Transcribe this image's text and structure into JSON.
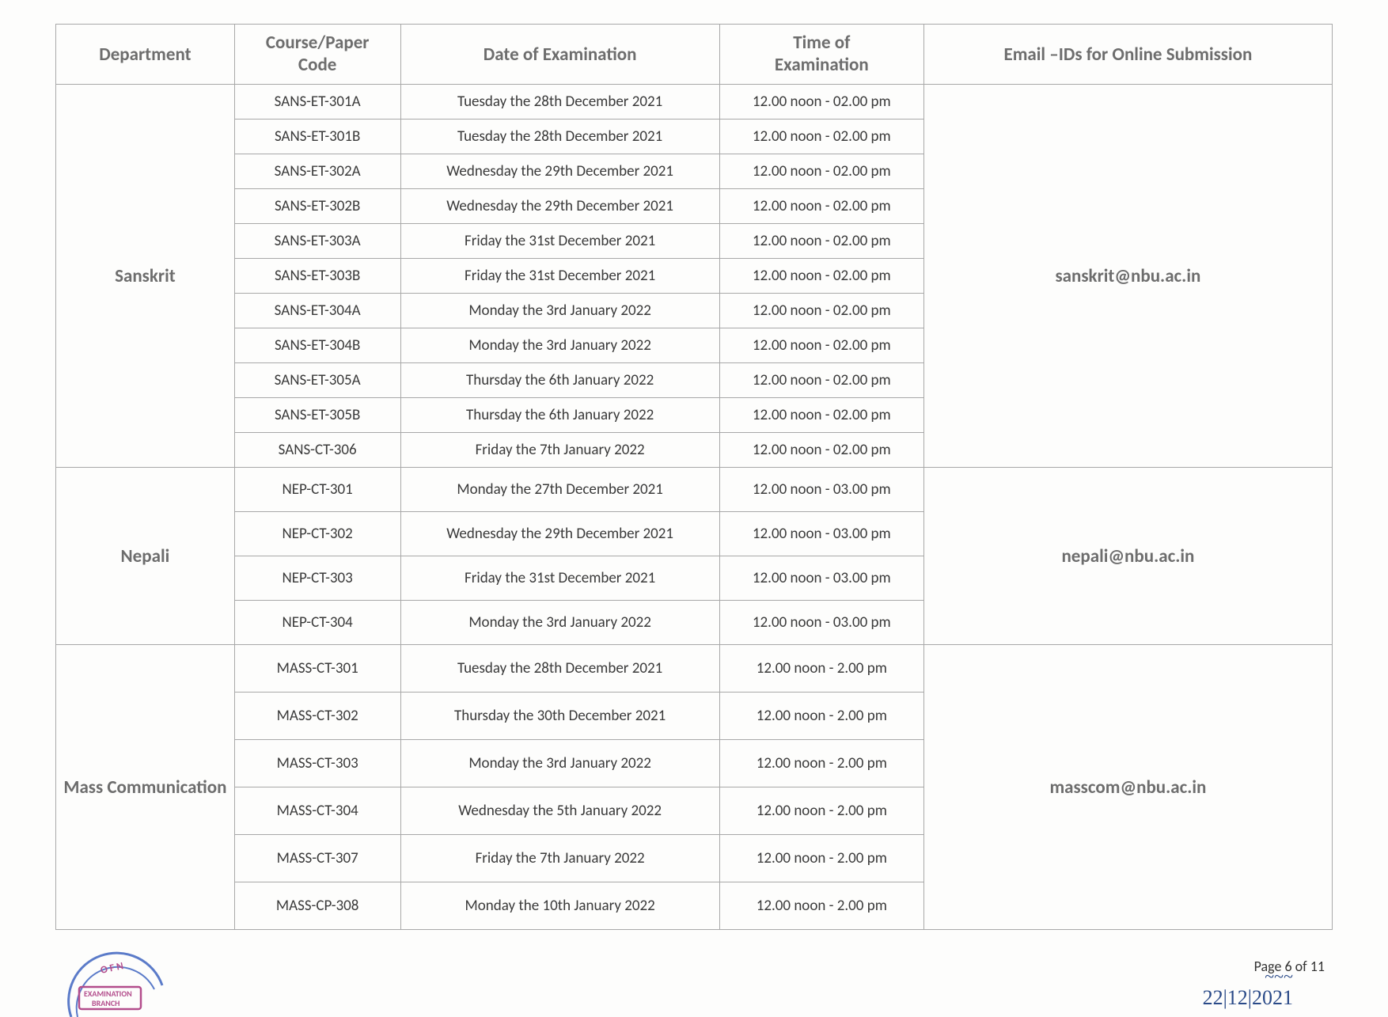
{
  "headers": {
    "dept": "Department",
    "code1": "Course/Paper",
    "code2": "Code",
    "date": "Date of Examination",
    "time1": "Time of",
    "time2": "Examination",
    "email": "Email –IDs for Online Submission"
  },
  "groups": [
    {
      "dept": "Sanskrit",
      "email": "sanskrit@nbu.ac.in",
      "rows": [
        {
          "code": "SANS-ET-301A",
          "date": "Tuesday the 28th December 2021",
          "time": "12.00 noon - 02.00 pm"
        },
        {
          "code": "SANS-ET-301B",
          "date": "Tuesday the 28th December 2021",
          "time": "12.00 noon - 02.00 pm"
        },
        {
          "code": "SANS-ET-302A",
          "date": "Wednesday the 29th December 2021",
          "time": "12.00 noon - 02.00 pm"
        },
        {
          "code": "SANS-ET-302B",
          "date": "Wednesday the 29th December 2021",
          "time": "12.00 noon - 02.00 pm"
        },
        {
          "code": "SANS-ET-303A",
          "date": "Friday the 31st December 2021",
          "time": "12.00 noon - 02.00 pm"
        },
        {
          "code": "SANS-ET-303B",
          "date": "Friday the 31st December 2021",
          "time": "12.00 noon - 02.00 pm"
        },
        {
          "code": "SANS-ET-304A",
          "date": "Monday the 3rd January 2022",
          "time": "12.00 noon - 02.00 pm"
        },
        {
          "code": "SANS-ET-304B",
          "date": "Monday the 3rd January 2022",
          "time": "12.00 noon - 02.00 pm"
        },
        {
          "code": "SANS-ET-305A",
          "date": "Thursday the 6th January 2022",
          "time": "12.00 noon - 02.00 pm"
        },
        {
          "code": "SANS-ET-305B",
          "date": "Thursday the 6th January 2022",
          "time": "12.00 noon - 02.00 pm"
        },
        {
          "code": "SANS-CT-306",
          "date": "Friday the 7th January 2022",
          "time": "12.00 noon - 02.00 pm"
        }
      ]
    },
    {
      "dept": "Nepali",
      "email": "nepali@nbu.ac.in",
      "rows": [
        {
          "code": "NEP-CT-301",
          "date": "Monday the 27th December 2021",
          "time": "12.00 noon - 03.00 pm"
        },
        {
          "code": "NEP-CT-302",
          "date": "Wednesday the 29th December 2021",
          "time": "12.00 noon - 03.00 pm"
        },
        {
          "code": "NEP-CT-303",
          "date": "Friday the 31st December 2021",
          "time": "12.00 noon - 03.00 pm"
        },
        {
          "code": "NEP-CT-304",
          "date": "Monday the 3rd January 2022",
          "time": "12.00 noon - 03.00 pm"
        }
      ]
    },
    {
      "dept": "Mass Communication",
      "email": "masscom@nbu.ac.in",
      "rows": [
        {
          "code": "MASS-CT-301",
          "date": "Tuesday the 28th December 2021",
          "time": "12.00 noon - 2.00 pm"
        },
        {
          "code": "MASS-CT-302",
          "date": "Thursday the 30th December 2021",
          "time": "12.00 noon - 2.00 pm"
        },
        {
          "code": "MASS-CT-303",
          "date": "Monday the 3rd January 2022",
          "time": "12.00 noon - 2.00 pm"
        },
        {
          "code": "MASS-CT-304",
          "date": "Wednesday the 5th January 2022",
          "time": "12.00 noon - 2.00 pm"
        },
        {
          "code": "MASS-CT-307",
          "date": "Friday the 7th January 2022",
          "time": "12.00 noon - 2.00 pm"
        },
        {
          "code": "MASS-CP-308",
          "date": "Monday the 10th January 2022",
          "time": "12.00 noon - 2.00 pm"
        }
      ]
    }
  ],
  "footer": {
    "sig_date": "22|12|2021",
    "pageno": "Page  6 of 11",
    "stamp_line1": "EXAMINATION",
    "stamp_line2": "BRANCH"
  },
  "style": {
    "border_color": "#a8a8a8",
    "header_color": "#6d6d6d",
    "cell_color": "#3a3a3a",
    "ink_color": "#2a4a88",
    "stamp_outer": "#b34d8c",
    "stamp_inner": "#5b7bc9"
  }
}
